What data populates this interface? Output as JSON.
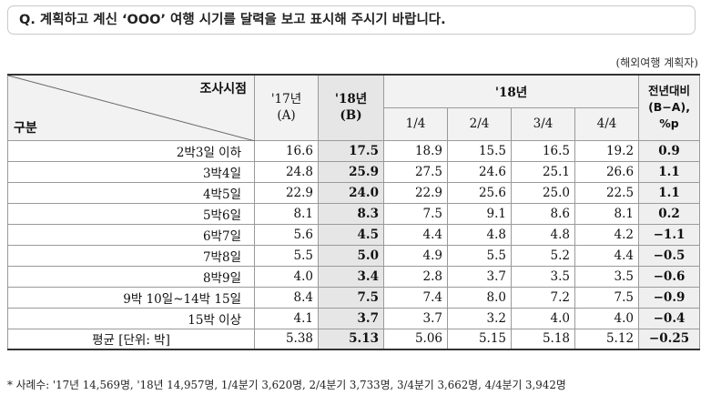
{
  "question": "Q. 계획하고 계신 ‘OOO’ 여행 시기를 달력을 보고 표시해 주시기 바랍니다.",
  "unit_note": "(해외여행 계획자)",
  "header": {
    "diag_top": "조사시점",
    "diag_bottom": "구분",
    "col17_line1": "'17년",
    "col17_line2": "(A)",
    "col18_line1": "'18년",
    "col18_line2": "(B)",
    "group18": "'18년",
    "quarters": [
      "1/4",
      "2/4",
      "3/4",
      "4/4"
    ],
    "diff_line1": "전년대비",
    "diff_line2": "(B−A),",
    "diff_line3": "%p"
  },
  "rows": [
    {
      "label": "2박3일 이하",
      "y17": "16.6",
      "y18": "17.5",
      "q": [
        "18.9",
        "15.5",
        "16.5",
        "19.2"
      ],
      "diff": "0.9"
    },
    {
      "label": "3박4일",
      "y17": "24.8",
      "y18": "25.9",
      "q": [
        "27.5",
        "24.6",
        "25.1",
        "26.6"
      ],
      "diff": "1.1"
    },
    {
      "label": "4박5일",
      "y17": "22.9",
      "y18": "24.0",
      "q": [
        "22.9",
        "25.6",
        "25.0",
        "22.5"
      ],
      "diff": "1.1"
    },
    {
      "label": "5박6일",
      "y17": "8.1",
      "y18": "8.3",
      "q": [
        "7.5",
        "9.1",
        "8.6",
        "8.1"
      ],
      "diff": "0.2"
    },
    {
      "label": "6박7일",
      "y17": "5.6",
      "y18": "4.5",
      "q": [
        "4.4",
        "4.8",
        "4.8",
        "4.2"
      ],
      "diff": "−1.1"
    },
    {
      "label": "7박8일",
      "y17": "5.5",
      "y18": "5.0",
      "q": [
        "4.9",
        "5.5",
        "5.2",
        "4.4"
      ],
      "diff": "−0.5"
    },
    {
      "label": "8박9일",
      "y17": "4.0",
      "y18": "3.4",
      "q": [
        "2.8",
        "3.7",
        "3.5",
        "3.5"
      ],
      "diff": "−0.6"
    },
    {
      "label": "9박 10일~14박 15일",
      "y17": "8.4",
      "y18": "7.5",
      "q": [
        "7.4",
        "8.0",
        "7.2",
        "7.5"
      ],
      "diff": "−0.9"
    },
    {
      "label": "15박 이상",
      "y17": "4.1",
      "y18": "3.7",
      "q": [
        "3.7",
        "3.2",
        "4.0",
        "4.0"
      ],
      "diff": "−0.4"
    }
  ],
  "average": {
    "label": "평균 [단위: 박]",
    "y17": "5.38",
    "y18": "5.13",
    "q": [
      "5.06",
      "5.15",
      "5.18",
      "5.12"
    ],
    "diff": "−0.25"
  },
  "footnote": "* 사례수: '17년 14,569명, '18년 14,957명, 1/4분기 3,620명, 2/4분기 3,733명, 3/4분기 3,662명, 4/4분기 3,942명"
}
